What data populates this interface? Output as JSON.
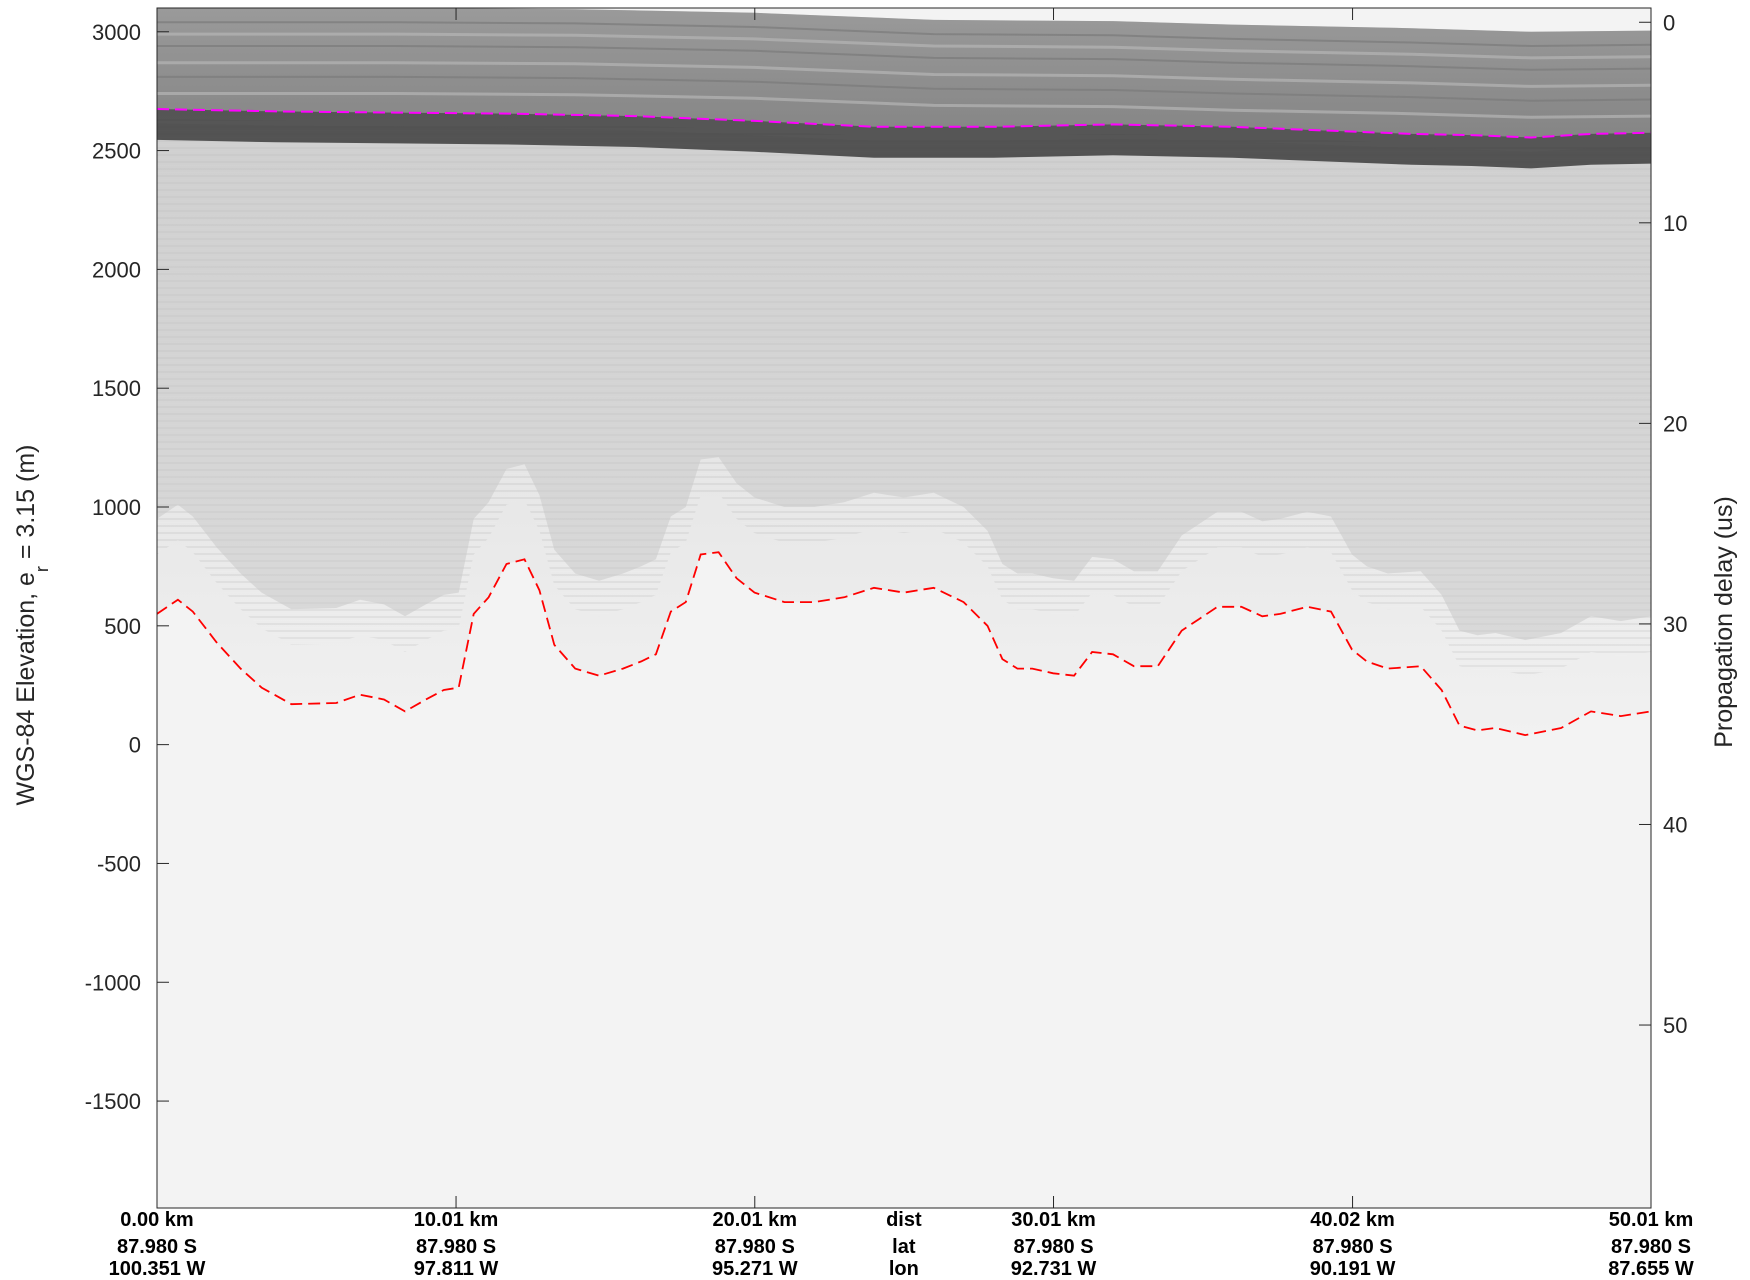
{
  "chart_data": {
    "type": "radar-echogram",
    "left_axis": {
      "label_main": "WGS-84 Elevation, e",
      "label_sub": "r",
      "label_tail": " = 3.15 (m)",
      "ticks": [
        3000,
        2500,
        2000,
        1500,
        1000,
        500,
        0,
        -500,
        -1000,
        -1500
      ],
      "tick_labels": [
        "3000",
        "2500",
        "2000",
        "1500",
        "1000",
        "500",
        "0",
        "-500",
        "-1000",
        "-1500"
      ],
      "range": [
        -1950,
        3100
      ]
    },
    "right_axis": {
      "label": "Propagation delay (us)",
      "ticks": [
        0,
        10,
        20,
        30,
        40,
        50
      ],
      "tick_labels": [
        "0",
        "10",
        "20",
        "30",
        "40",
        "50"
      ],
      "zero_elevation": 3040,
      "meters_per_us": 84.4
    },
    "x_axis": {
      "range_km": [
        0,
        50.01
      ],
      "columns": [
        {
          "dist": "0.00 km",
          "lat": "87.980 S",
          "lon": "100.351 W",
          "km": 0
        },
        {
          "dist": "10.01 km",
          "lat": "87.980 S",
          "lon": "97.811 W",
          "km": 10.01
        },
        {
          "dist": "20.01 km",
          "lat": "87.980 S",
          "lon": "95.271 W",
          "km": 20.01
        },
        {
          "dist": "30.01 km",
          "lat": "87.980 S",
          "lon": "92.731 W",
          "km": 30.01
        },
        {
          "dist": "40.02 km",
          "lat": "87.980 S",
          "lon": "90.191 W",
          "km": 40.02
        },
        {
          "dist": "50.01 km",
          "lat": "87.980 S",
          "lon": "87.655 W",
          "km": 50.01
        }
      ],
      "row_labels": {
        "dist": "dist",
        "lat": "lat",
        "lon": "lon"
      },
      "row_label_km": 25.0
    },
    "surface_top": {
      "x_km": [
        0,
        8,
        14,
        20,
        26,
        32,
        36,
        42,
        46,
        50.01
      ],
      "elevation": [
        3100,
        3100,
        3095,
        3080,
        3050,
        3045,
        3030,
        3015,
        3000,
        3005
      ]
    },
    "ice_surface_pick": {
      "color": "#ff00ff",
      "x_km": [
        0,
        4,
        8,
        12,
        16,
        20,
        24,
        28,
        32,
        36,
        38,
        42,
        44,
        46,
        48,
        50.01
      ],
      "elevation": [
        2675,
        2665,
        2660,
        2655,
        2645,
        2625,
        2600,
        2600,
        2610,
        2600,
        2590,
        2570,
        2565,
        2555,
        2570,
        2575
      ]
    },
    "bed_pick": {
      "color": "#ff0000",
      "x_km": [
        0,
        0.7,
        1.2,
        2.0,
        2.8,
        3.5,
        4.5,
        6.0,
        6.8,
        7.6,
        8.3,
        9.0,
        9.6,
        10.1,
        10.6,
        11.1,
        11.7,
        12.3,
        12.8,
        13.3,
        14.0,
        14.8,
        15.6,
        16.2,
        16.7,
        17.2,
        17.7,
        18.2,
        18.8,
        19.4,
        20.0,
        21.0,
        22.0,
        23.0,
        24.0,
        25.0,
        26.0,
        27.0,
        27.8,
        28.3,
        28.8,
        29.3,
        30.0,
        30.7,
        31.3,
        32.0,
        32.7,
        33.5,
        34.3,
        34.9,
        35.5,
        36.3,
        37.0,
        37.6,
        38.5,
        39.3,
        40.0,
        40.5,
        41.2,
        42.3,
        43.0,
        43.6,
        44.2,
        44.8,
        45.8,
        47.0,
        48.0,
        49.0,
        50.01
      ],
      "elevation": [
        550,
        610,
        560,
        430,
        320,
        240,
        170,
        175,
        210,
        190,
        140,
        190,
        230,
        240,
        550,
        620,
        760,
        780,
        650,
        420,
        320,
        290,
        320,
        350,
        380,
        560,
        600,
        800,
        810,
        700,
        640,
        600,
        600,
        620,
        660,
        640,
        660,
        600,
        500,
        360,
        320,
        320,
        300,
        290,
        390,
        380,
        330,
        330,
        480,
        530,
        580,
        580,
        540,
        550,
        580,
        560,
        400,
        350,
        320,
        330,
        230,
        80,
        60,
        70,
        40,
        70,
        140,
        120,
        140
      ]
    }
  }
}
